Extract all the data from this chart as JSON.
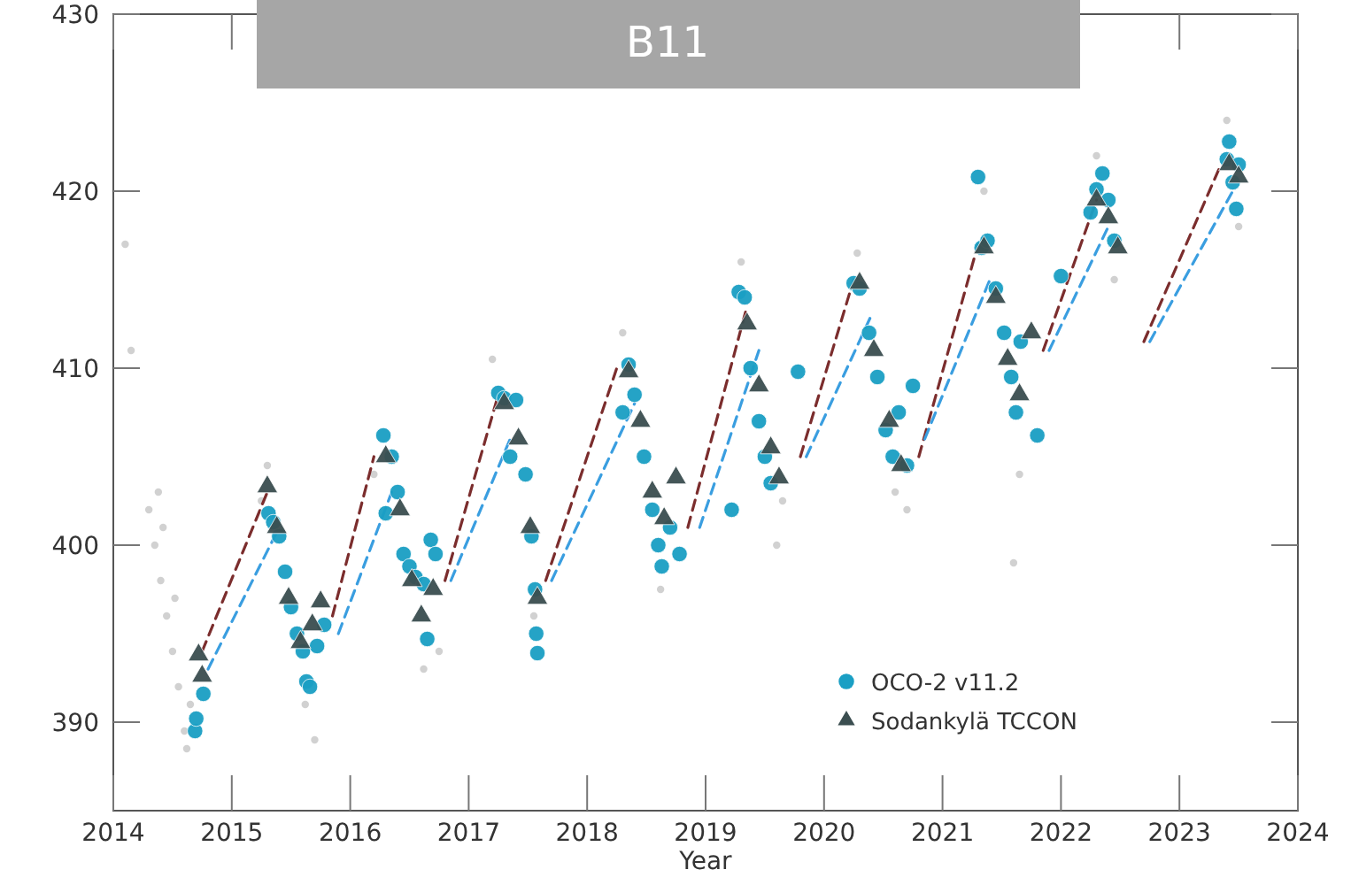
{
  "chart_data": {
    "type": "scatter",
    "title": "B11",
    "xlabel": "Year",
    "xlim": [
      2014,
      2024
    ],
    "xticks": [
      2014,
      2015,
      2016,
      2017,
      2018,
      2019,
      2020,
      2021,
      2022,
      2023,
      2024
    ],
    "ylim": [
      385,
      430
    ],
    "yticks": [
      390,
      400,
      410,
      420,
      430
    ],
    "grid": false,
    "legend": "bottom right",
    "series": [
      {
        "color": "#cccccc",
        "marker": "circle",
        "x": [
          2014.3,
          2014.35,
          2014.38,
          2014.4,
          2014.45,
          2014.5,
          2014.55,
          2014.6,
          2014.62,
          2014.65,
          2014.42,
          2014.52,
          2015.25,
          2015.3,
          2015.62,
          2015.7,
          2016.2,
          2016.62,
          2016.75,
          2017.2,
          2017.55,
          2018.3,
          2018.62,
          2019.3,
          2019.6,
          2019.65,
          2020.28,
          2020.6,
          2020.7,
          2021.35,
          2021.65,
          2021.6,
          2022.3,
          2022.45,
          2023.4,
          2023.5,
          2014.1,
          2014.15
        ],
        "values": [
          402,
          400,
          403,
          398,
          396,
          394,
          392,
          389.5,
          388.5,
          391,
          401,
          397,
          402.5,
          404.5,
          391,
          389,
          404,
          393,
          394,
          410.5,
          396,
          412,
          397.5,
          416,
          400,
          402.5,
          416.5,
          403,
          402,
          420,
          404,
          399,
          422,
          415,
          424,
          418,
          417,
          411
        ]
      },
      {
        "type": "line",
        "color": "#7b2d2d",
        "marker": "none",
        "line_style": "dashed",
        "x": [
          2014.75,
          2015.3,
          2015.5,
          2015.85,
          2016.2,
          2016.5,
          2016.8,
          2017.25,
          2017.5,
          2017.65,
          2018.25,
          2018.5,
          2018.85,
          2019.35,
          2019.6,
          2019.8,
          2020.25,
          2020.5,
          2020.8,
          2021.3,
          2021.5,
          2021.85,
          2022.3,
          2022.5,
          2022.7,
          2023.35
        ],
        "values": [
          394,
          403,
          null,
          396,
          405,
          null,
          398,
          408.5,
          null,
          398,
          410,
          null,
          401,
          413.5,
          null,
          405,
          415,
          null,
          405,
          417,
          null,
          411,
          419.5,
          null,
          411.5,
          421.5
        ]
      },
      {
        "type": "line",
        "color": "#3a9ee0",
        "marker": "none",
        "line_style": "dashed",
        "x": [
          2014.8,
          2015.4,
          2015.6,
          2015.9,
          2016.35,
          2016.6,
          2016.85,
          2017.35,
          2017.6,
          2017.7,
          2018.4,
          2018.6,
          2018.95,
          2019.45,
          2019.7,
          2019.85,
          2020.4,
          2020.6,
          2020.85,
          2021.4,
          2021.6,
          2021.9,
          2022.4,
          2022.6,
          2022.75,
          2023.45
        ],
        "values": [
          393,
          401,
          null,
          395,
          403,
          null,
          398,
          406,
          null,
          398,
          408,
          null,
          401,
          411,
          null,
          405,
          413,
          null,
          406,
          415,
          null,
          411,
          418,
          null,
          411.5,
          420
        ]
      },
      {
        "name": "OCO-2 v11.2",
        "color": "#1a9fc4",
        "marker": "circle",
        "x": [
          2014.69,
          2014.7,
          2014.76,
          2015.31,
          2015.35,
          2015.4,
          2015.45,
          2015.5,
          2015.55,
          2015.6,
          2015.63,
          2015.66,
          2015.72,
          2015.78,
          2016.28,
          2016.3,
          2016.35,
          2016.4,
          2016.45,
          2016.5,
          2016.55,
          2016.62,
          2016.65,
          2016.68,
          2016.72,
          2017.25,
          2017.3,
          2017.35,
          2017.4,
          2017.48,
          2017.53,
          2017.56,
          2017.57,
          2017.58,
          2018.3,
          2018.35,
          2018.4,
          2018.48,
          2018.55,
          2018.6,
          2018.63,
          2018.7,
          2018.78,
          2019.22,
          2019.28,
          2019.33,
          2019.38,
          2019.45,
          2019.5,
          2019.55,
          2019.78,
          2020.25,
          2020.3,
          2020.38,
          2020.45,
          2020.52,
          2020.58,
          2020.63,
          2020.7,
          2020.75,
          2021.3,
          2021.33,
          2021.38,
          2021.45,
          2021.52,
          2021.58,
          2021.62,
          2021.66,
          2021.8,
          2022.0,
          2022.25,
          2022.3,
          2022.35,
          2022.4,
          2022.45,
          2023.4,
          2023.42,
          2023.45,
          2023.48,
          2023.5
        ],
        "values": [
          389.5,
          390.2,
          391.6,
          401.8,
          401.3,
          400.5,
          398.5,
          396.5,
          395,
          394,
          392.3,
          392,
          394.3,
          395.5,
          406.2,
          401.8,
          405,
          403,
          399.5,
          398.8,
          398.2,
          397.8,
          394.7,
          400.3,
          399.5,
          408.6,
          408.3,
          405,
          408.2,
          404,
          400.5,
          397.5,
          395,
          393.9,
          407.5,
          410.2,
          408.5,
          405,
          402,
          400,
          398.8,
          401,
          399.5,
          402,
          414.3,
          414,
          410,
          407,
          405,
          403.5,
          409.8,
          414.8,
          414.5,
          412,
          409.5,
          406.5,
          405,
          407.5,
          404.5,
          409,
          420.8,
          416.8,
          417.2,
          414.5,
          412,
          409.5,
          407.5,
          411.5,
          406.2,
          415.2,
          418.8,
          420.1,
          421,
          419.5,
          417.2,
          421.8,
          422.8,
          420.5,
          419,
          421.5
        ]
      },
      {
        "name": "Sodankylä TCCON",
        "color": "#3b4e50",
        "marker": "triangle",
        "x": [
          2014.72,
          2014.75,
          2015.3,
          2015.38,
          2015.48,
          2015.58,
          2015.68,
          2015.75,
          2016.3,
          2016.42,
          2016.52,
          2016.6,
          2016.7,
          2017.3,
          2017.42,
          2017.52,
          2017.58,
          2018.35,
          2018.45,
          2018.55,
          2018.65,
          2018.75,
          2019.35,
          2019.45,
          2019.55,
          2019.62,
          2020.3,
          2020.42,
          2020.55,
          2020.65,
          2021.35,
          2021.45,
          2021.55,
          2021.65,
          2021.75,
          2022.3,
          2022.4,
          2022.48,
          2023.42,
          2023.5
        ],
        "values": [
          393.8,
          392.6,
          403.3,
          401,
          397,
          394.5,
          395.5,
          396.8,
          405,
          402,
          398,
          396,
          397.5,
          408,
          406,
          401,
          397,
          409.8,
          407,
          403,
          401.5,
          403.8,
          412.5,
          409,
          405.5,
          403.8,
          414.8,
          411,
          407,
          404.5,
          416.8,
          414,
          410.5,
          408.5,
          412,
          419.5,
          418.5,
          416.8,
          421.5,
          420.8
        ]
      }
    ]
  }
}
